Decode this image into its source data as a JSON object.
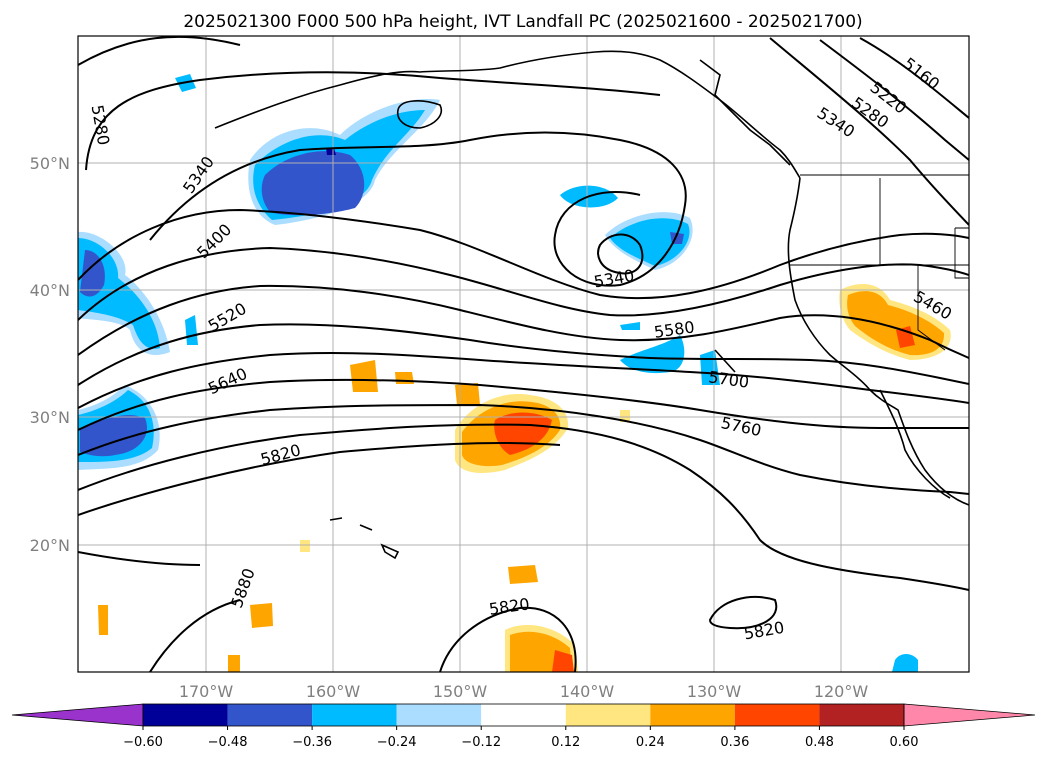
{
  "title": "2025021300 F000 500 hPa height, IVT Landfall PC (2025021600 - 2025021700)",
  "lon_ticks": [
    "170°W",
    "160°W",
    "150°W",
    "140°W",
    "130°W",
    "120°W"
  ],
  "lat_ticks": [
    "50°N",
    "40°N",
    "30°N",
    "20°N"
  ],
  "contour_labels": [
    "5160",
    "5220",
    "5280",
    "5340",
    "5280",
    "5340",
    "5400",
    "5520",
    "5640",
    "5820",
    "5340",
    "5580",
    "5700",
    "5760",
    "5460",
    "5880",
    "5820",
    "5820"
  ],
  "colorbar": {
    "tick_labels": [
      "−0.60",
      "−0.48",
      "−0.36",
      "−0.24",
      "−0.12",
      "0.12",
      "0.24",
      "0.36",
      "0.48",
      "0.60"
    ],
    "colors": [
      "#9933cc",
      "#000099",
      "#3355cc",
      "#00bbff",
      "#aaddff",
      "#ffffff",
      "#ffe680",
      "#ffa500",
      "#ff4500",
      "#b22222",
      "#ff88aa"
    ]
  },
  "fill_colors": {
    "neg_1": "#aaddff",
    "neg_2": "#00bbff",
    "neg_3": "#3355cc",
    "neg_4": "#000099",
    "pos_1": "#ffe680",
    "pos_2": "#ffa500",
    "pos_3": "#ff4500"
  }
}
